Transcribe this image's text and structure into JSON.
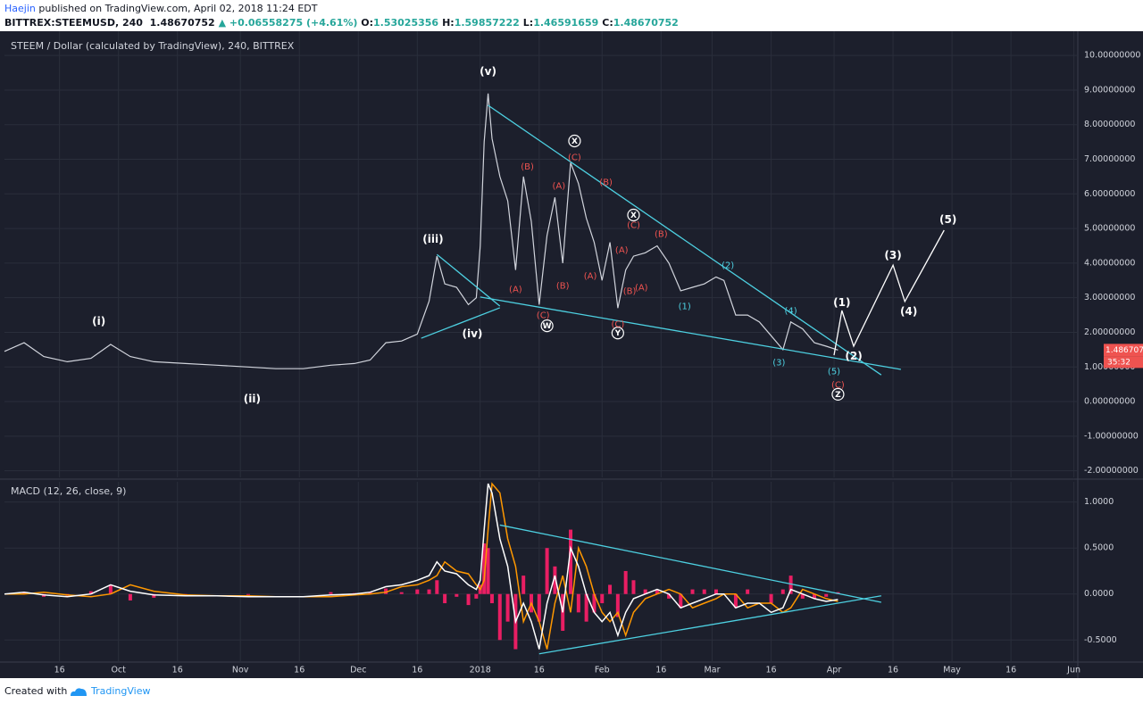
{
  "header": {
    "user": "Haejin",
    "published": "published on TradingView.com, April 02, 2018 11:24 EDT",
    "symbol": "BITTREX:STEEMUSD, 240",
    "price": "1.48670752",
    "change": "▲ +0.06558275 (+4.61%)",
    "ohlc": [
      {
        "label": "O:",
        "value": "1.53025356"
      },
      {
        "label": "H:",
        "value": "1.59857222"
      },
      {
        "label": "L:",
        "value": "1.46591659"
      },
      {
        "label": "C:",
        "value": "1.48670752"
      }
    ]
  },
  "footer": {
    "created": "Created with",
    "brand": "TradingView"
  },
  "chart_data": [
    {
      "type": "line",
      "title": "STEEM / Dollar (calculated by TradingView), 240, BITTREX",
      "color": "#d1d4dc",
      "x": [
        "2017-09-02",
        "2017-09-07",
        "2017-09-12",
        "2017-09-18",
        "2017-09-24",
        "2017-09-29",
        "2017-10-04",
        "2017-10-10",
        "2017-10-18",
        "2017-10-26",
        "2017-11-03",
        "2017-11-10",
        "2017-11-17",
        "2017-11-24",
        "2017-11-30",
        "2017-12-04",
        "2017-12-08",
        "2017-12-12",
        "2017-12-16",
        "2017-12-19",
        "2017-12-21",
        "2017-12-23",
        "2017-12-26",
        "2017-12-29",
        "2017-12-31",
        "2018-01-01",
        "2018-01-02",
        "2018-01-03",
        "2018-01-04",
        "2018-01-06",
        "2018-01-08",
        "2018-01-10",
        "2018-01-12",
        "2018-01-14",
        "2018-01-16",
        "2018-01-18",
        "2018-01-20",
        "2018-01-22",
        "2018-01-24",
        "2018-01-26",
        "2018-01-28",
        "2018-01-30",
        "2018-02-01",
        "2018-02-03",
        "2018-02-05",
        "2018-02-07",
        "2018-02-09",
        "2018-02-12",
        "2018-02-15",
        "2018-02-18",
        "2018-02-21",
        "2018-02-24",
        "2018-02-27",
        "2018-03-02",
        "2018-03-04",
        "2018-03-07",
        "2018-03-10",
        "2018-03-13",
        "2018-03-16",
        "2018-03-19",
        "2018-03-21",
        "2018-03-24",
        "2018-03-27",
        "2018-03-30",
        "2018-04-02"
      ],
      "values": [
        1.45,
        1.7,
        1.3,
        1.15,
        1.25,
        1.65,
        1.3,
        1.15,
        1.1,
        1.05,
        1.0,
        0.95,
        0.95,
        1.05,
        1.1,
        1.2,
        1.7,
        1.75,
        1.95,
        2.9,
        4.2,
        3.4,
        3.3,
        2.8,
        3.0,
        4.5,
        7.5,
        8.9,
        7.6,
        6.5,
        5.8,
        3.8,
        6.5,
        5.2,
        2.8,
        4.8,
        5.9,
        4.0,
        6.9,
        6.3,
        5.3,
        4.6,
        3.5,
        4.6,
        2.7,
        3.8,
        4.2,
        4.3,
        4.5,
        4.0,
        3.2,
        3.3,
        3.4,
        3.6,
        3.5,
        2.5,
        2.5,
        2.3,
        1.9,
        1.5,
        2.3,
        2.1,
        1.7,
        1.6,
        1.49
      ],
      "xlim": [
        "2017-09-02",
        "2018-06-02"
      ],
      "ylim": [
        -2.19,
        10.7
      ],
      "yticks": [
        {
          "value": 10,
          "label": "10.00000000"
        },
        {
          "value": 9,
          "label": "9.00000000"
        },
        {
          "value": 8,
          "label": "8.00000000"
        },
        {
          "value": 7,
          "label": "7.00000000"
        },
        {
          "value": 6,
          "label": "6.00000000"
        },
        {
          "value": 5,
          "label": "5.00000000"
        },
        {
          "value": 4,
          "label": "4.00000000"
        },
        {
          "value": 3,
          "label": "3.00000000"
        },
        {
          "value": 2,
          "label": "2.00000000"
        },
        {
          "value": 1,
          "label": "1.00000000"
        },
        {
          "value": 0,
          "label": "0.00000000"
        },
        {
          "value": -1,
          "label": "-1.00000000"
        },
        {
          "value": -2,
          "label": "-2.00000000"
        }
      ],
      "grid": true,
      "last_price": {
        "value": 1.48670752,
        "label": "1.48670752",
        "color": "#ef5350"
      },
      "countdown": "35:32",
      "trendlines": {
        "color": "#4dd0e1",
        "lines": [
          {
            "x": [
              "2018-01-03",
              "2018-04-13"
            ],
            "values": [
              8.56,
              0.77
            ]
          },
          {
            "x": [
              "2018-01-01",
              "2018-04-18"
            ],
            "values": [
              3.02,
              0.93
            ]
          },
          {
            "x": [
              "2017-12-21",
              "2018-01-06"
            ],
            "values": [
              4.25,
              2.76
            ]
          },
          {
            "x": [
              "2017-12-17",
              "2018-01-06"
            ],
            "values": [
              1.83,
              2.71
            ]
          }
        ]
      },
      "projection": {
        "color": "#ffffff",
        "x": [
          "2018-04-01",
          "2018-04-03",
          "2018-04-06",
          "2018-04-16",
          "2018-04-19",
          "2018-04-29"
        ],
        "values": [
          1.34,
          2.63,
          1.6,
          3.94,
          2.89,
          4.95
        ]
      },
      "wave_labels": [
        {
          "text": "(i)",
          "x": "2017-09-26",
          "y": 2.32,
          "color": "#ffffff"
        },
        {
          "text": "(ii)",
          "x": "2017-11-04",
          "y": 0.08,
          "color": "#ffffff"
        },
        {
          "text": "(iii)",
          "x": "2017-12-20",
          "y": 4.69,
          "color": "#ffffff"
        },
        {
          "text": "(iv)",
          "x": "2017-12-30",
          "y": 1.96,
          "color": "#ffffff"
        },
        {
          "text": "(v)",
          "x": "2018-01-03",
          "y": 9.54,
          "color": "#ffffff"
        },
        {
          "text": "W",
          "x": "2018-01-18",
          "y": 2.19,
          "color": "#ffffff",
          "circled": true
        },
        {
          "text": "X",
          "x": "2018-01-25",
          "y": 7.53,
          "color": "#ffffff",
          "circled": true
        },
        {
          "text": "X",
          "x": "2018-02-09",
          "y": 5.39,
          "color": "#ffffff",
          "circled": true
        },
        {
          "text": "Y",
          "x": "2018-02-05",
          "y": 1.98,
          "color": "#ffffff",
          "circled": true
        },
        {
          "text": "Z",
          "x": "2018-04-02",
          "y": 0.21,
          "color": "#ffffff",
          "circled": true
        },
        {
          "text": "(A)",
          "x": "2018-01-10",
          "y": 3.25,
          "color": "#ef5350"
        },
        {
          "text": "(B)",
          "x": "2018-01-13",
          "y": 6.8,
          "color": "#ef5350"
        },
        {
          "text": "(C)",
          "x": "2018-01-17",
          "y": 2.5,
          "color": "#ef5350"
        },
        {
          "text": "(B)",
          "x": "2018-01-22",
          "y": 3.35,
          "color": "#ef5350"
        },
        {
          "text": "(A)",
          "x": "2018-01-21",
          "y": 6.24,
          "color": "#ef5350"
        },
        {
          "text": "(C)",
          "x": "2018-01-25",
          "y": 7.06,
          "color": "#ef5350"
        },
        {
          "text": "(B)",
          "x": "2018-02-02",
          "y": 6.34,
          "color": "#ef5350"
        },
        {
          "text": "(A)",
          "x": "2018-01-29",
          "y": 3.63,
          "color": "#ef5350"
        },
        {
          "text": "(C)",
          "x": "2018-02-05",
          "y": 2.24,
          "color": "#ef5350"
        },
        {
          "text": "(A)",
          "x": "2018-02-06",
          "y": 4.38,
          "color": "#ef5350"
        },
        {
          "text": "(B)",
          "x": "2018-02-08",
          "y": 3.2,
          "color": "#ef5350"
        },
        {
          "text": "(A)",
          "x": "2018-02-11",
          "y": 3.3,
          "color": "#ef5350"
        },
        {
          "text": "(C)",
          "x": "2018-02-09",
          "y": 5.1,
          "color": "#ef5350"
        },
        {
          "text": "(B)",
          "x": "2018-02-16",
          "y": 4.85,
          "color": "#ef5350"
        },
        {
          "text": "(C)",
          "x": "2018-04-02",
          "y": 0.49,
          "color": "#ef5350"
        },
        {
          "text": "(1)",
          "x": "2018-02-22",
          "y": 2.76,
          "color": "#4dd0e1"
        },
        {
          "text": "(2)",
          "x": "2018-03-05",
          "y": 3.94,
          "color": "#4dd0e1"
        },
        {
          "text": "(3)",
          "x": "2018-03-18",
          "y": 1.13,
          "color": "#4dd0e1"
        },
        {
          "text": "(4)",
          "x": "2018-03-21",
          "y": 2.63,
          "color": "#4dd0e1"
        },
        {
          "text": "(5)",
          "x": "2018-04-01",
          "y": 0.88,
          "color": "#4dd0e1"
        },
        {
          "text": "(1)",
          "x": "2018-04-03",
          "y": 2.86,
          "color": "#ffffff"
        },
        {
          "text": "(2)",
          "x": "2018-04-06",
          "y": 1.31,
          "color": "#ffffff"
        },
        {
          "text": "(3)",
          "x": "2018-04-16",
          "y": 4.23,
          "color": "#ffffff"
        },
        {
          "text": "(4)",
          "x": "2018-04-20",
          "y": 2.6,
          "color": "#ffffff"
        },
        {
          "text": "(5)",
          "x": "2018-04-30",
          "y": 5.26,
          "color": "#ffffff"
        }
      ]
    },
    {
      "type": "line",
      "title": "MACD (12, 26, close, 9)",
      "x": [
        "2017-09-02",
        "2017-09-07",
        "2017-09-12",
        "2017-09-18",
        "2017-09-24",
        "2017-09-29",
        "2017-10-04",
        "2017-10-10",
        "2017-10-18",
        "2017-10-26",
        "2017-11-03",
        "2017-11-10",
        "2017-11-17",
        "2017-11-24",
        "2017-11-30",
        "2017-12-04",
        "2017-12-08",
        "2017-12-12",
        "2017-12-16",
        "2017-12-19",
        "2017-12-21",
        "2017-12-23",
        "2017-12-26",
        "2017-12-29",
        "2017-12-31",
        "2018-01-01",
        "2018-01-02",
        "2018-01-03",
        "2018-01-04",
        "2018-01-06",
        "2018-01-08",
        "2018-01-10",
        "2018-01-12",
        "2018-01-14",
        "2018-01-16",
        "2018-01-18",
        "2018-01-20",
        "2018-01-22",
        "2018-01-24",
        "2018-01-26",
        "2018-01-28",
        "2018-01-30",
        "2018-02-01",
        "2018-02-03",
        "2018-02-05",
        "2018-02-07",
        "2018-02-09",
        "2018-02-12",
        "2018-02-15",
        "2018-02-18",
        "2018-02-21",
        "2018-02-24",
        "2018-02-27",
        "2018-03-02",
        "2018-03-04",
        "2018-03-07",
        "2018-03-10",
        "2018-03-13",
        "2018-03-16",
        "2018-03-19",
        "2018-03-21",
        "2018-03-24",
        "2018-03-27",
        "2018-03-30",
        "2018-04-02"
      ],
      "series": [
        {
          "color": "#ffffff",
          "values": [
            0,
            0.02,
            -0.01,
            -0.03,
            0,
            0.1,
            0.03,
            -0.01,
            -0.02,
            -0.02,
            -0.03,
            -0.03,
            -0.03,
            -0.01,
            0,
            0.02,
            0.08,
            0.1,
            0.15,
            0.2,
            0.35,
            0.25,
            0.22,
            0.1,
            0.05,
            0.15,
            0.7,
            1.2,
            1.1,
            0.6,
            0.3,
            -0.3,
            -0.1,
            -0.3,
            -0.6,
            -0.1,
            0.2,
            -0.2,
            0.5,
            0.3,
            0,
            -0.2,
            -0.3,
            -0.2,
            -0.45,
            -0.2,
            -0.05,
            0,
            0.05,
            0,
            -0.15,
            -0.1,
            -0.05,
            0,
            0,
            -0.15,
            -0.1,
            -0.1,
            -0.2,
            -0.15,
            0.05,
            0,
            -0.05,
            -0.08,
            -0.06
          ]
        },
        {
          "color": "#ff9800",
          "values": [
            0,
            0,
            0.02,
            -0.01,
            -0.03,
            0,
            0.1,
            0.03,
            -0.01,
            -0.02,
            -0.02,
            -0.03,
            -0.03,
            -0.03,
            -0.01,
            0,
            0.02,
            0.08,
            0.1,
            0.15,
            0.2,
            0.35,
            0.25,
            0.22,
            0.1,
            0.05,
            0.15,
            0.7,
            1.2,
            1.1,
            0.6,
            0.3,
            -0.3,
            -0.1,
            -0.3,
            -0.6,
            -0.1,
            0.2,
            -0.2,
            0.5,
            0.3,
            0,
            -0.2,
            -0.3,
            -0.2,
            -0.45,
            -0.2,
            -0.05,
            0,
            0.05,
            0,
            -0.15,
            -0.1,
            -0.05,
            0,
            0,
            -0.15,
            -0.1,
            -0.1,
            -0.2,
            -0.15,
            0.05,
            0,
            -0.05,
            -0.08
          ]
        }
      ],
      "histogram": {
        "color": "#e91e63",
        "values": [
          0,
          0.02,
          -0.03,
          -0.02,
          0.03,
          0.1,
          -0.07,
          -0.04,
          -0.01,
          0,
          -0.01,
          0,
          0,
          0.02,
          0.01,
          0.02,
          0.06,
          0.02,
          0.05,
          0.05,
          0.15,
          -0.1,
          -0.03,
          -0.12,
          -0.05,
          0.1,
          0.55,
          0.5,
          -0.1,
          -0.5,
          -0.3,
          -0.6,
          0.2,
          -0.2,
          -0.3,
          0.5,
          0.3,
          -0.4,
          0.7,
          -0.2,
          -0.3,
          -0.2,
          -0.1,
          0.1,
          -0.25,
          0.25,
          0.15,
          0.05,
          0.05,
          -0.05,
          -0.15,
          0.05,
          0.05,
          0.05,
          0,
          -0.15,
          0.05,
          0,
          -0.1,
          0.05,
          0.2,
          -0.05,
          -0.05,
          -0.03,
          0.02
        ]
      },
      "xlim": [
        "2017-09-02",
        "2018-06-02"
      ],
      "ylim": [
        -0.74,
        1.22
      ],
      "yticks": [
        {
          "value": 1,
          "label": "1.0000"
        },
        {
          "value": 0.5,
          "label": "0.5000"
        },
        {
          "value": 0,
          "label": "0.0000"
        },
        {
          "value": -0.5,
          "label": "-0.5000"
        }
      ],
      "grid": true,
      "trendlines": {
        "color": "#4dd0e1",
        "lines": [
          {
            "x": [
              "2018-01-06",
              "2018-04-13"
            ],
            "values": [
              0.75,
              -0.09
            ]
          },
          {
            "x": [
              "2018-01-16",
              "2018-04-13"
            ],
            "values": [
              -0.65,
              -0.02
            ]
          }
        ]
      },
      "xticks": [
        {
          "value": "2017-09-16",
          "label": "16"
        },
        {
          "value": "2017-10-01",
          "label": "Oct"
        },
        {
          "value": "2017-10-16",
          "label": "16"
        },
        {
          "value": "2017-11-01",
          "label": "Nov"
        },
        {
          "value": "2017-11-16",
          "label": "16"
        },
        {
          "value": "2017-12-01",
          "label": "Dec"
        },
        {
          "value": "2017-12-16",
          "label": "16"
        },
        {
          "value": "2018-01-01",
          "label": "2018"
        },
        {
          "value": "2018-01-16",
          "label": "16"
        },
        {
          "value": "2018-02-01",
          "label": "Feb"
        },
        {
          "value": "2018-02-16",
          "label": "16"
        },
        {
          "value": "2018-03-01",
          "label": "Mar"
        },
        {
          "value": "2018-03-16",
          "label": "16"
        },
        {
          "value": "2018-04-01",
          "label": "Apr"
        },
        {
          "value": "2018-04-16",
          "label": "16"
        },
        {
          "value": "2018-05-01",
          "label": "May"
        },
        {
          "value": "2018-05-16",
          "label": "16"
        },
        {
          "value": "2018-06-01",
          "label": "Jun"
        }
      ]
    }
  ]
}
